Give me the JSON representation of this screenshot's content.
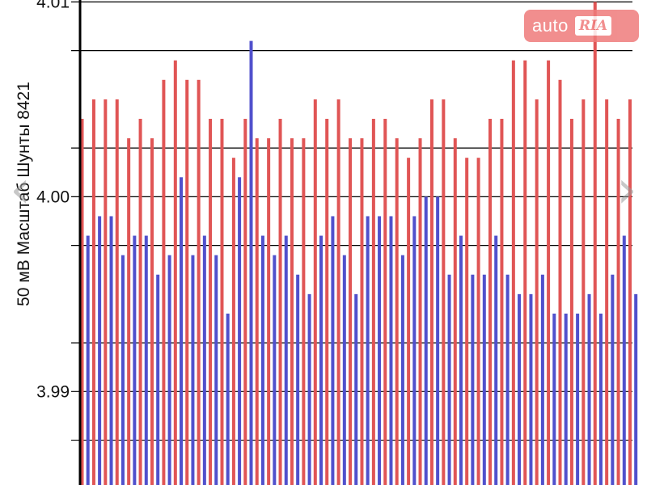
{
  "chart_data": {
    "type": "bar",
    "title": "",
    "xlabel": "",
    "ylabel": "50 мВ Масштаб  Шунты 8421",
    "ylim": [
      3.9852,
      4.0101
    ],
    "yticks": [
      3.99,
      4.0,
      4.01
    ],
    "ytick_labels": [
      "3.99",
      "4.00",
      "4.01"
    ],
    "minor_gridlines": [
      3.9875,
      3.9925,
      3.9975,
      4.0025,
      4.0075
    ],
    "grid": true,
    "legend": "none",
    "series": [
      {
        "color": "#e05555",
        "values": [
          4.004,
          4.005,
          4.005,
          4.005,
          4.003,
          4.004,
          4.003,
          4.006,
          4.007,
          4.006,
          4.006,
          4.004,
          4.004,
          4.002,
          4.004,
          4.003,
          4.003,
          4.004,
          4.003,
          4.003,
          4.005,
          4.004,
          4.005,
          4.003,
          4.003,
          4.004,
          4.004,
          4.003,
          4.002,
          4.003,
          4.005,
          4.005,
          4.003,
          4.002,
          4.002,
          4.004,
          4.004,
          4.007,
          4.007,
          4.005,
          4.007,
          4.006,
          4.004,
          4.005,
          4.01,
          4.005,
          4.004,
          4.005
        ]
      },
      {
        "color": "#5050cc",
        "values": [
          3.998,
          3.999,
          3.999,
          3.997,
          3.998,
          3.998,
          3.996,
          3.997,
          4.001,
          3.997,
          3.998,
          3.997,
          3.994,
          4.001,
          4.008,
          3.998,
          3.997,
          3.998,
          3.996,
          3.995,
          3.998,
          3.999,
          3.997,
          3.995,
          3.999,
          3.999,
          3.999,
          3.997,
          3.999,
          4.0,
          4.0,
          3.996,
          3.998,
          3.996,
          3.996,
          3.998,
          3.996,
          3.995,
          3.995,
          3.996,
          3.994,
          3.994,
          3.994,
          3.995,
          3.994,
          3.996,
          3.998,
          3.995
        ]
      }
    ]
  },
  "watermark": {
    "word": "auto",
    "badge": "RIA"
  },
  "nav": {
    "prev_glyph": "‹",
    "next_glyph": "›"
  },
  "colors": {
    "red_bar": "#e05555",
    "blue_bar": "#5050cc",
    "watermark_bg": "#ef7b7b"
  }
}
